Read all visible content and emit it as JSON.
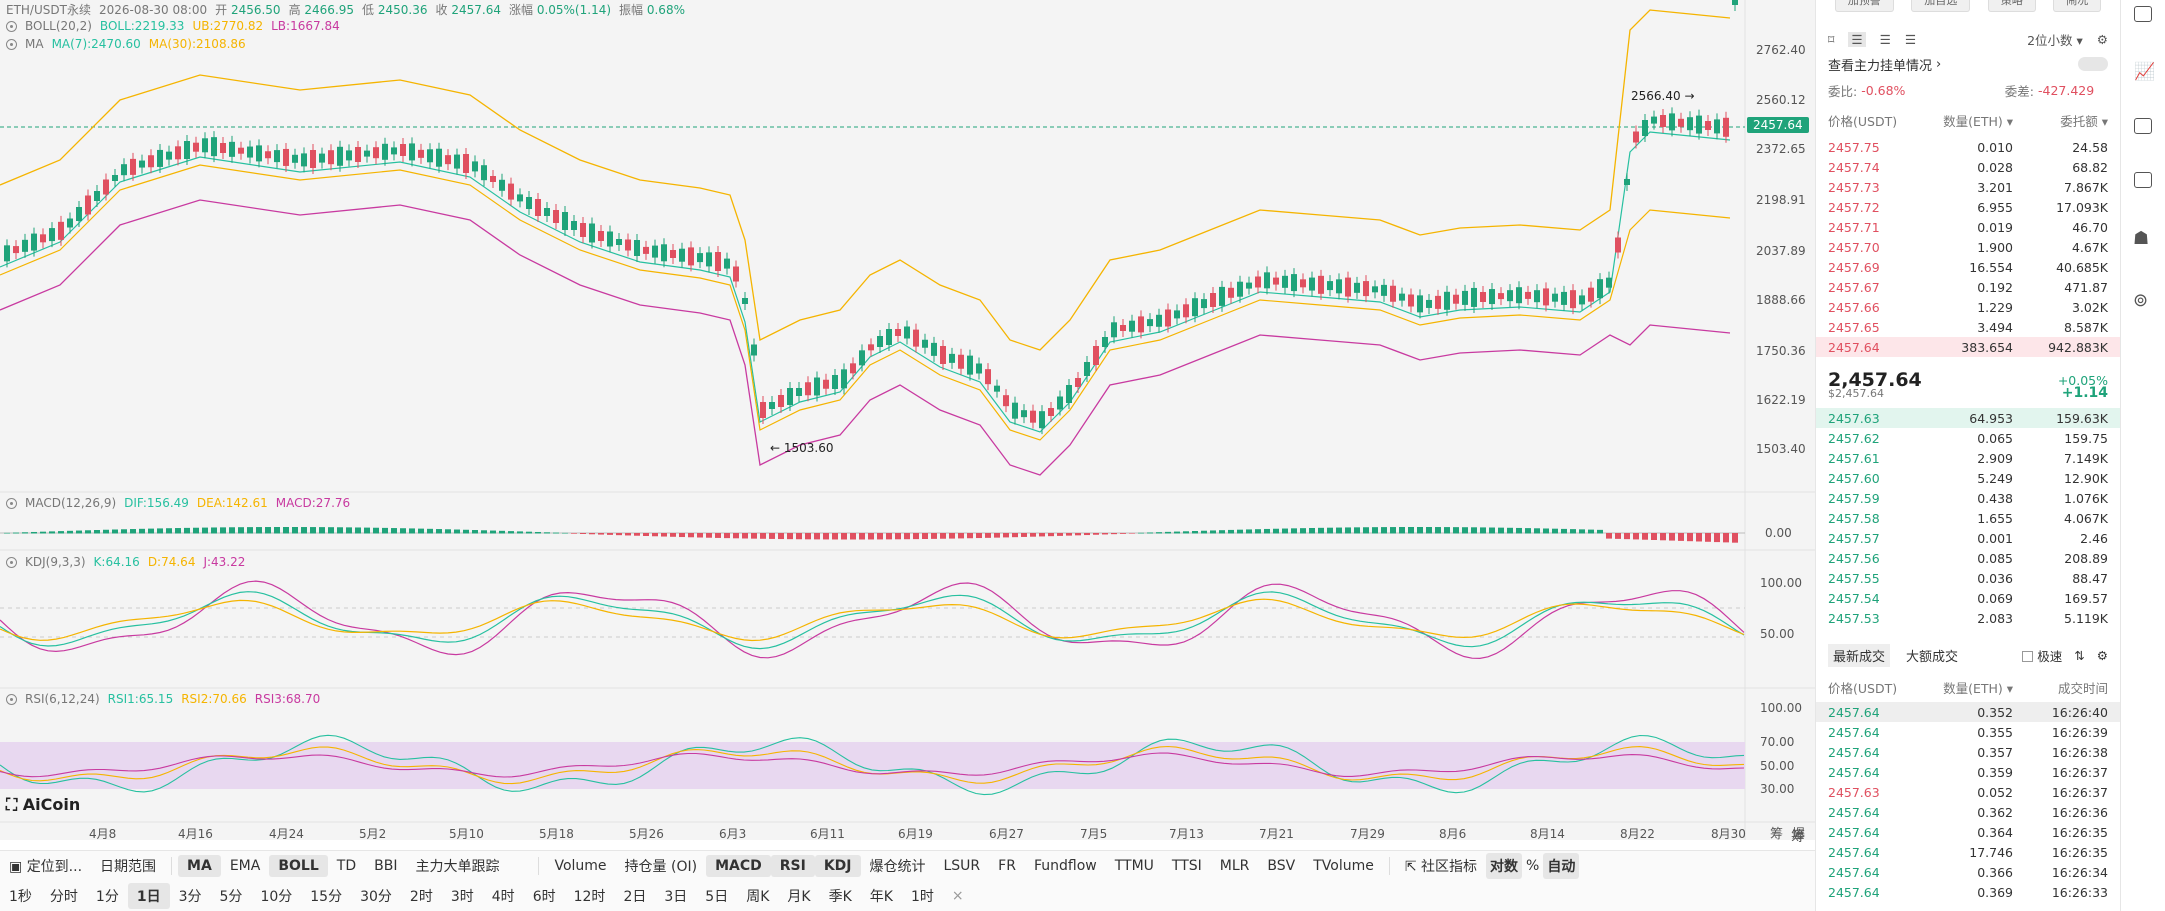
{
  "header": {
    "symbol": "ETH/USDT永续",
    "datetime": "2026-08-30 08:00",
    "open_label": "开",
    "open": "2456.50",
    "high_label": "高",
    "high": "2466.95",
    "low_label": "低",
    "low": "2450.36",
    "close_label": "收",
    "close": "2457.64",
    "change_label": "涨幅",
    "change": "0.05%(1.14)",
    "amp_label": "振幅",
    "amp": "0.68%"
  },
  "boll": {
    "name": "BOLL(20,2)",
    "boll": "BOLL:2219.33",
    "ub": "UB:2770.82",
    "lb": "LB:1667.84"
  },
  "ma": {
    "name": "MA",
    "ma7": "MA(7):2470.60",
    "ma30": "MA(30):2108.86"
  },
  "macd": {
    "name": "MACD(12,26,9)",
    "dif": "DIF:156.49",
    "dea": "DEA:142.61",
    "macd": "MACD:27.76"
  },
  "kdj": {
    "name": "KDJ(9,3,3)",
    "k": "K:64.16",
    "d": "D:74.64",
    "j": "J:43.22"
  },
  "rsi": {
    "name": "RSI(6,12,24)",
    "r1": "RSI1:65.15",
    "r2": "RSI2:70.66",
    "r3": "RSI3:68.70"
  },
  "price_axis": [
    "2762.40",
    "2560.12",
    "2372.65",
    "2198.91",
    "2037.89",
    "1888.66",
    "1750.36",
    "1622.19",
    "1503.40"
  ],
  "current_price_tag": "2457.64",
  "high_mark": "2566.40",
  "low_mark": "1503.60",
  "macd_axis": [
    "0.00"
  ],
  "kdj_axis": [
    "100.00",
    "50.00"
  ],
  "rsi_axis": [
    "100.00",
    "70.00",
    "50.00",
    "30.00"
  ],
  "x_labels": [
    "4月8",
    "4月16",
    "4月24",
    "5月2",
    "5月10",
    "5月18",
    "5月26",
    "6月3",
    "6月11",
    "6月19",
    "6月27",
    "7月5",
    "7月13",
    "7月21",
    "7月29",
    "8月6",
    "8月14",
    "8月22",
    "8月30"
  ],
  "x_right": [
    "筹",
    "爆"
  ],
  "logo": "AiCoin",
  "toolbar1": [
    "定位到...",
    "日期范围",
    "MA",
    "EMA",
    "BOLL",
    "TD",
    "BBI",
    "主力大单跟踪",
    "Volume",
    "持仓量 (OI)",
    "MACD",
    "RSI",
    "KDJ",
    "爆仓统计",
    "LSUR",
    "FR",
    "Fundflow",
    "TTMU",
    "TTSI",
    "MLR",
    "BSV",
    "TVolume",
    "社区指标",
    "对数",
    "%",
    "自动"
  ],
  "toolbar2": [
    "1秒",
    "分时",
    "1分",
    "1日",
    "3分",
    "5分",
    "10分",
    "15分",
    "30分",
    "2时",
    "3时",
    "4时",
    "6时",
    "12时",
    "2日",
    "3日",
    "5日",
    "周K",
    "月K",
    "季K",
    "年K",
    "1时",
    "×"
  ],
  "side": {
    "top_buttons": [
      "加预警",
      "加自选",
      "策略",
      "闹况"
    ],
    "decimal": "2位小数",
    "depth_title": "查看主力挂单情况",
    "ratio_label": "委比:",
    "ratio": "-0.68%",
    "diff_label": "委差:",
    "diff": "-427.429",
    "cols": [
      "价格(USDT)",
      "数量(ETH)",
      "委托额"
    ],
    "asks": [
      [
        "2457.75",
        "0.010",
        "24.58"
      ],
      [
        "2457.74",
        "0.028",
        "68.82"
      ],
      [
        "2457.73",
        "3.201",
        "7.867K"
      ],
      [
        "2457.72",
        "6.955",
        "17.093K"
      ],
      [
        "2457.71",
        "0.019",
        "46.70"
      ],
      [
        "2457.70",
        "1.900",
        "4.67K"
      ],
      [
        "2457.69",
        "16.554",
        "40.685K"
      ],
      [
        "2457.67",
        "0.192",
        "471.87"
      ],
      [
        "2457.66",
        "1.229",
        "3.02K"
      ],
      [
        "2457.65",
        "3.494",
        "8.587K"
      ],
      [
        "2457.64",
        "383.654",
        "942.883K"
      ]
    ],
    "last_price": "2,457.64",
    "last_usd": "$2,457.64",
    "last_pct": "+0.05%",
    "last_chg": "+1.14",
    "bids": [
      [
        "2457.63",
        "64.953",
        "159.63K"
      ],
      [
        "2457.62",
        "0.065",
        "159.75"
      ],
      [
        "2457.61",
        "2.909",
        "7.149K"
      ],
      [
        "2457.60",
        "5.249",
        "12.90K"
      ],
      [
        "2457.59",
        "0.438",
        "1.076K"
      ],
      [
        "2457.58",
        "1.655",
        "4.067K"
      ],
      [
        "2457.57",
        "0.001",
        "2.46"
      ],
      [
        "2457.56",
        "0.085",
        "208.89"
      ],
      [
        "2457.55",
        "0.036",
        "88.47"
      ],
      [
        "2457.54",
        "0.069",
        "169.57"
      ],
      [
        "2457.53",
        "2.083",
        "5.119K"
      ]
    ],
    "trade_tabs": [
      "最新成交",
      "大额成交"
    ],
    "speed_label": "极速",
    "trade_cols": [
      "价格(USDT)",
      "数量(ETH)",
      "成交时间"
    ],
    "trades": [
      [
        "2457.64",
        "0.352",
        "16:26:40",
        "up"
      ],
      [
        "2457.64",
        "0.355",
        "16:26:39",
        "up"
      ],
      [
        "2457.64",
        "0.357",
        "16:26:38",
        "up"
      ],
      [
        "2457.64",
        "0.359",
        "16:26:37",
        "up"
      ],
      [
        "2457.63",
        "0.052",
        "16:26:37",
        "down"
      ],
      [
        "2457.64",
        "0.362",
        "16:26:36",
        "up"
      ],
      [
        "2457.64",
        "0.364",
        "16:26:35",
        "up"
      ],
      [
        "2457.64",
        "17.746",
        "16:26:35",
        "up"
      ],
      [
        "2457.64",
        "0.366",
        "16:26:34",
        "up"
      ],
      [
        "2457.64",
        "0.369",
        "16:26:33",
        "up"
      ]
    ]
  },
  "colors": {
    "up": "#1fa37a",
    "down": "#e05060",
    "boll": "#f5b400",
    "lb": "#c83aa0",
    "ma7": "#27c0a0",
    "ma30": "#f5b400"
  }
}
